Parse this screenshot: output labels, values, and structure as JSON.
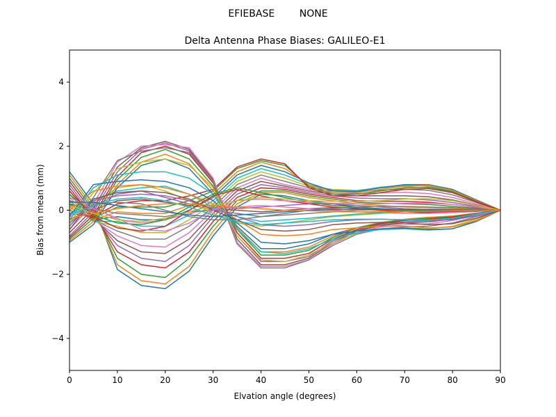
{
  "suptitle": "EFIEBASE        NONE",
  "chart_data": {
    "type": "line",
    "title": "Delta Antenna Phase Biases: GALILEO-E1",
    "xlabel": "Elvation angle (degrees)",
    "ylabel": "Bias from mean (mm)",
    "xlim": [
      0,
      90
    ],
    "ylim": [
      -5,
      5
    ],
    "x": [
      0,
      5,
      10,
      15,
      20,
      25,
      30,
      35,
      40,
      45,
      50,
      55,
      60,
      65,
      70,
      75,
      80,
      85,
      90
    ],
    "xticks": [
      0,
      10,
      20,
      30,
      40,
      50,
      60,
      70,
      80,
      90
    ],
    "xtick_labels": [
      "0",
      "10",
      "20",
      "30",
      "40",
      "50",
      "60",
      "70",
      "80",
      "90"
    ],
    "yticks": [
      -4,
      -2,
      0,
      2,
      4
    ],
    "ytick_labels": [
      "−4",
      "−2",
      "0",
      "2",
      "4"
    ],
    "grid": false,
    "colors": [
      "#1f77b4",
      "#ff7f0e",
      "#2ca02c",
      "#d62728",
      "#9467bd",
      "#8c564b",
      "#e377c2",
      "#7f7f7f",
      "#bcbd22",
      "#17becf"
    ],
    "series": [
      {
        "values": [
          1.2,
          0.2,
          -1.85,
          -2.35,
          -2.45,
          -1.9,
          -0.8,
          0.1,
          0.5,
          0.45,
          0.3,
          0.2,
          0.1,
          0.0,
          -0.05,
          -0.08,
          -0.07,
          -0.04,
          0.0
        ]
      },
      {
        "values": [
          1.1,
          0.1,
          -1.7,
          -2.2,
          -2.3,
          -1.75,
          -0.65,
          0.2,
          0.55,
          0.55,
          0.4,
          0.3,
          0.2,
          0.15,
          0.1,
          0.08,
          0.05,
          0.03,
          0.0
        ]
      },
      {
        "values": [
          1.0,
          0.0,
          -1.5,
          -2.0,
          -2.1,
          -1.5,
          -0.5,
          0.3,
          0.6,
          0.6,
          0.45,
          0.35,
          0.25,
          0.22,
          0.2,
          0.18,
          0.12,
          0.06,
          0.0
        ]
      },
      {
        "values": [
          0.9,
          -0.1,
          -1.3,
          -1.7,
          -1.8,
          -1.3,
          -0.35,
          0.4,
          0.7,
          0.65,
          0.5,
          0.4,
          0.3,
          0.28,
          0.28,
          0.25,
          0.18,
          0.09,
          0.0
        ]
      },
      {
        "values": [
          0.8,
          -0.2,
          -1.1,
          -1.5,
          -1.6,
          -1.1,
          -0.2,
          0.5,
          0.8,
          0.7,
          0.55,
          0.45,
          0.38,
          0.36,
          0.36,
          0.32,
          0.24,
          0.12,
          0.0
        ]
      },
      {
        "values": [
          0.7,
          -0.25,
          -0.95,
          -1.3,
          -1.35,
          -0.9,
          -0.1,
          0.6,
          0.9,
          0.75,
          0.6,
          0.5,
          0.45,
          0.45,
          0.45,
          0.42,
          0.32,
          0.16,
          0.0
        ]
      },
      {
        "values": [
          0.6,
          -0.3,
          -0.8,
          -1.1,
          -1.15,
          -0.7,
          0.0,
          0.7,
          1.0,
          0.8,
          0.65,
          0.55,
          0.52,
          0.54,
          0.56,
          0.52,
          0.4,
          0.2,
          0.0
        ]
      },
      {
        "values": [
          0.5,
          -0.3,
          -0.65,
          -0.9,
          -0.9,
          -0.5,
          0.1,
          0.8,
          1.1,
          0.9,
          0.7,
          0.6,
          0.58,
          0.62,
          0.66,
          0.62,
          0.48,
          0.24,
          0.0
        ]
      },
      {
        "values": [
          0.4,
          -0.35,
          -0.5,
          -0.7,
          -0.7,
          -0.3,
          0.2,
          0.9,
          1.2,
          1.0,
          0.75,
          0.65,
          0.62,
          0.7,
          0.74,
          0.7,
          0.55,
          0.28,
          0.0
        ]
      },
      {
        "values": [
          0.3,
          -0.35,
          -0.35,
          -0.5,
          -0.5,
          -0.15,
          0.3,
          1.0,
          1.3,
          1.1,
          0.8,
          0.62,
          0.6,
          0.72,
          0.78,
          0.76,
          0.6,
          0.3,
          0.0
        ]
      },
      {
        "values": [
          0.2,
          -0.3,
          -0.2,
          -0.3,
          -0.3,
          0.0,
          0.4,
          1.1,
          1.4,
          1.2,
          0.85,
          0.6,
          0.58,
          0.7,
          0.8,
          0.8,
          0.65,
          0.32,
          0.0
        ]
      },
      {
        "values": [
          0.1,
          -0.3,
          -0.05,
          -0.1,
          -0.1,
          0.15,
          0.5,
          1.2,
          1.5,
          1.3,
          0.8,
          0.55,
          0.55,
          0.65,
          0.75,
          0.78,
          0.62,
          0.3,
          0.0
        ]
      },
      {
        "values": [
          0.0,
          -0.25,
          0.1,
          0.1,
          0.1,
          0.3,
          0.6,
          1.3,
          1.55,
          1.4,
          0.75,
          0.5,
          0.5,
          0.6,
          0.7,
          0.72,
          0.58,
          0.28,
          0.0
        ]
      },
      {
        "values": [
          -0.1,
          -0.2,
          0.2,
          0.3,
          0.3,
          0.45,
          0.65,
          1.35,
          1.6,
          1.45,
          0.7,
          0.45,
          0.45,
          0.55,
          0.65,
          0.68,
          0.55,
          0.26,
          0.0
        ]
      },
      {
        "values": [
          0.3,
          0.1,
          0.5,
          0.6,
          0.4,
          0.2,
          0.1,
          0.05,
          0.1,
          0.15,
          0.2,
          0.2,
          0.15,
          0.1,
          0.05,
          0.02,
          0.0,
          0.0,
          0.0
        ]
      },
      {
        "values": [
          0.2,
          0.0,
          0.3,
          0.35,
          0.25,
          0.15,
          0.05,
          0.0,
          -0.05,
          0.0,
          0.05,
          0.08,
          0.08,
          0.05,
          0.02,
          0.0,
          -0.02,
          -0.01,
          0.0
        ]
      },
      {
        "values": [
          -0.2,
          0.1,
          -0.3,
          -0.4,
          -0.3,
          -0.1,
          0.05,
          0.1,
          0.15,
          0.1,
          0.05,
          0.0,
          -0.05,
          -0.08,
          -0.1,
          -0.1,
          -0.07,
          -0.03,
          0.0
        ]
      },
      {
        "values": [
          -0.3,
          0.05,
          -0.1,
          -0.15,
          -0.2,
          -0.05,
          0.0,
          -0.1,
          -0.2,
          -0.15,
          -0.1,
          -0.05,
          0.0,
          0.02,
          0.03,
          0.03,
          0.02,
          0.01,
          0.0
        ]
      },
      {
        "values": [
          0.1,
          0.2,
          0.7,
          0.8,
          0.6,
          0.3,
          -0.1,
          -0.4,
          -0.5,
          -0.4,
          -0.3,
          -0.2,
          -0.15,
          -0.1,
          -0.05,
          -0.03,
          -0.02,
          -0.01,
          0.0
        ]
      },
      {
        "values": [
          -0.1,
          0.3,
          0.6,
          0.7,
          0.75,
          0.5,
          0.1,
          -0.2,
          -0.35,
          -0.3,
          -0.25,
          -0.18,
          -0.12,
          -0.08,
          -0.05,
          -0.03,
          -0.02,
          -0.01,
          0.0
        ]
      },
      {
        "values": [
          -1.0,
          -0.45,
          0.7,
          1.4,
          1.6,
          1.3,
          0.5,
          -0.5,
          -1.2,
          -1.2,
          -1.05,
          -0.75,
          -0.55,
          -0.4,
          -0.3,
          -0.25,
          -0.2,
          -0.1,
          0.0
        ]
      },
      {
        "values": [
          -0.95,
          -0.35,
          0.8,
          1.5,
          1.75,
          1.45,
          0.6,
          -0.55,
          -1.3,
          -1.3,
          -1.15,
          -0.8,
          -0.55,
          -0.38,
          -0.28,
          -0.22,
          -0.18,
          -0.09,
          0.0
        ]
      },
      {
        "values": [
          -0.9,
          -0.25,
          0.95,
          1.65,
          1.9,
          1.6,
          0.75,
          -0.6,
          -1.4,
          -1.4,
          -1.25,
          -0.85,
          -0.55,
          -0.4,
          -0.3,
          -0.25,
          -0.2,
          -0.1,
          0.0
        ]
      },
      {
        "values": [
          -0.85,
          -0.15,
          1.05,
          1.8,
          2.0,
          1.75,
          0.85,
          -0.7,
          -1.5,
          -1.5,
          -1.35,
          -0.9,
          -0.6,
          -0.42,
          -0.32,
          -0.28,
          -0.22,
          -0.11,
          0.0
        ]
      },
      {
        "values": [
          -0.8,
          -0.05,
          1.2,
          1.9,
          2.1,
          1.85,
          0.9,
          -0.8,
          -1.6,
          -1.6,
          -1.45,
          -0.95,
          -0.62,
          -0.45,
          -0.36,
          -0.32,
          -0.25,
          -0.12,
          0.0
        ]
      },
      {
        "values": [
          -0.7,
          0.05,
          1.35,
          1.95,
          2.15,
          1.9,
          0.95,
          -0.9,
          -1.7,
          -1.7,
          -1.5,
          -1.0,
          -0.65,
          -0.48,
          -0.4,
          -0.36,
          -0.28,
          -0.14,
          0.0
        ]
      },
      {
        "values": [
          -0.6,
          0.2,
          1.5,
          2.0,
          2.05,
          1.95,
          1.0,
          -1.0,
          -1.75,
          -1.75,
          -1.55,
          -1.05,
          -0.7,
          -0.52,
          -0.45,
          -0.42,
          -0.32,
          -0.16,
          0.0
        ]
      },
      {
        "values": [
          -0.5,
          0.4,
          1.55,
          1.85,
          1.95,
          1.8,
          0.9,
          -1.05,
          -1.8,
          -1.8,
          -1.55,
          -1.1,
          -0.75,
          -0.58,
          -0.52,
          -0.5,
          -0.4,
          -0.2,
          0.0
        ]
      },
      {
        "values": [
          -0.4,
          0.55,
          1.3,
          1.5,
          1.6,
          1.4,
          0.7,
          -0.8,
          -1.55,
          -1.6,
          -1.4,
          -1.0,
          -0.72,
          -0.58,
          -0.55,
          -0.58,
          -0.5,
          -0.28,
          0.0
        ]
      },
      {
        "values": [
          -0.3,
          0.7,
          1.1,
          1.2,
          1.2,
          1.0,
          0.5,
          -0.6,
          -1.3,
          -1.35,
          -1.2,
          -0.9,
          -0.7,
          -0.6,
          -0.58,
          -0.62,
          -0.58,
          -0.33,
          0.0
        ]
      },
      {
        "values": [
          -0.2,
          0.8,
          0.9,
          0.95,
          0.9,
          0.7,
          0.3,
          -0.4,
          -1.0,
          -1.05,
          -0.95,
          -0.75,
          -0.65,
          -0.58,
          -0.56,
          -0.6,
          -0.58,
          -0.35,
          0.0
        ]
      },
      {
        "values": [
          0.0,
          0.6,
          0.75,
          0.8,
          0.7,
          0.5,
          0.2,
          -0.3,
          -0.75,
          -0.8,
          -0.75,
          -0.6,
          -0.55,
          -0.5,
          -0.5,
          -0.55,
          -0.52,
          -0.32,
          0.0
        ]
      },
      {
        "values": [
          0.5,
          -0.15,
          -0.4,
          -0.45,
          -0.3,
          0.1,
          0.5,
          0.7,
          0.55,
          0.4,
          0.25,
          0.15,
          0.1,
          0.05,
          0.0,
          -0.02,
          -0.03,
          -0.02,
          0.0
        ]
      },
      {
        "values": [
          0.6,
          -0.2,
          -0.55,
          -0.65,
          -0.5,
          0.0,
          0.45,
          0.65,
          0.45,
          0.3,
          0.2,
          0.1,
          0.05,
          0.0,
          -0.03,
          -0.05,
          -0.04,
          -0.02,
          0.0
        ]
      },
      {
        "values": [
          -0.5,
          0.3,
          0.45,
          0.5,
          0.45,
          0.3,
          0.05,
          -0.2,
          -0.45,
          -0.5,
          -0.45,
          -0.35,
          -0.3,
          -0.28,
          -0.3,
          -0.32,
          -0.3,
          -0.18,
          0.0
        ]
      },
      {
        "values": [
          -0.6,
          0.35,
          0.55,
          0.6,
          0.55,
          0.35,
          0.0,
          -0.3,
          -0.6,
          -0.65,
          -0.6,
          -0.45,
          -0.4,
          -0.38,
          -0.4,
          -0.45,
          -0.42,
          -0.25,
          0.0
        ]
      },
      {
        "values": [
          0.4,
          0.05,
          -0.25,
          -0.6,
          -0.65,
          -0.4,
          0.0,
          0.3,
          0.35,
          0.3,
          0.25,
          0.22,
          0.2,
          0.2,
          0.22,
          0.22,
          0.18,
          0.1,
          0.0
        ]
      },
      {
        "values": [
          -0.4,
          0.2,
          0.25,
          0.2,
          0.0,
          -0.2,
          -0.3,
          -0.3,
          -0.2,
          -0.1,
          0.0,
          0.05,
          0.1,
          0.12,
          0.12,
          0.1,
          0.08,
          0.04,
          0.0
        ]
      },
      {
        "values": [
          0.15,
          -0.1,
          -0.3,
          -0.35,
          -0.25,
          -0.05,
          0.15,
          0.3,
          0.4,
          0.35,
          0.3,
          0.28,
          0.28,
          0.3,
          0.35,
          0.36,
          0.3,
          0.15,
          0.0
        ]
      },
      {
        "values": [
          -0.15,
          0.15,
          0.35,
          0.4,
          0.3,
          0.1,
          -0.15,
          -0.35,
          -0.45,
          -0.4,
          -0.35,
          -0.3,
          -0.28,
          -0.28,
          -0.3,
          -0.3,
          -0.25,
          -0.12,
          0.0
        ]
      },
      {
        "values": [
          0.25,
          0.25,
          0.15,
          0.05,
          -0.05,
          -0.15,
          -0.2,
          -0.15,
          -0.1,
          -0.05,
          0.0,
          0.02,
          0.03,
          0.03,
          0.02,
          0.02,
          0.01,
          0.0,
          0.0
        ]
      },
      {
        "values": [
          -0.25,
          -0.1,
          0.05,
          0.15,
          0.2,
          0.2,
          0.15,
          0.1,
          0.05,
          0.0,
          -0.02,
          -0.04,
          -0.05,
          -0.05,
          -0.04,
          -0.03,
          -0.02,
          -0.01,
          0.0
        ]
      }
    ]
  }
}
